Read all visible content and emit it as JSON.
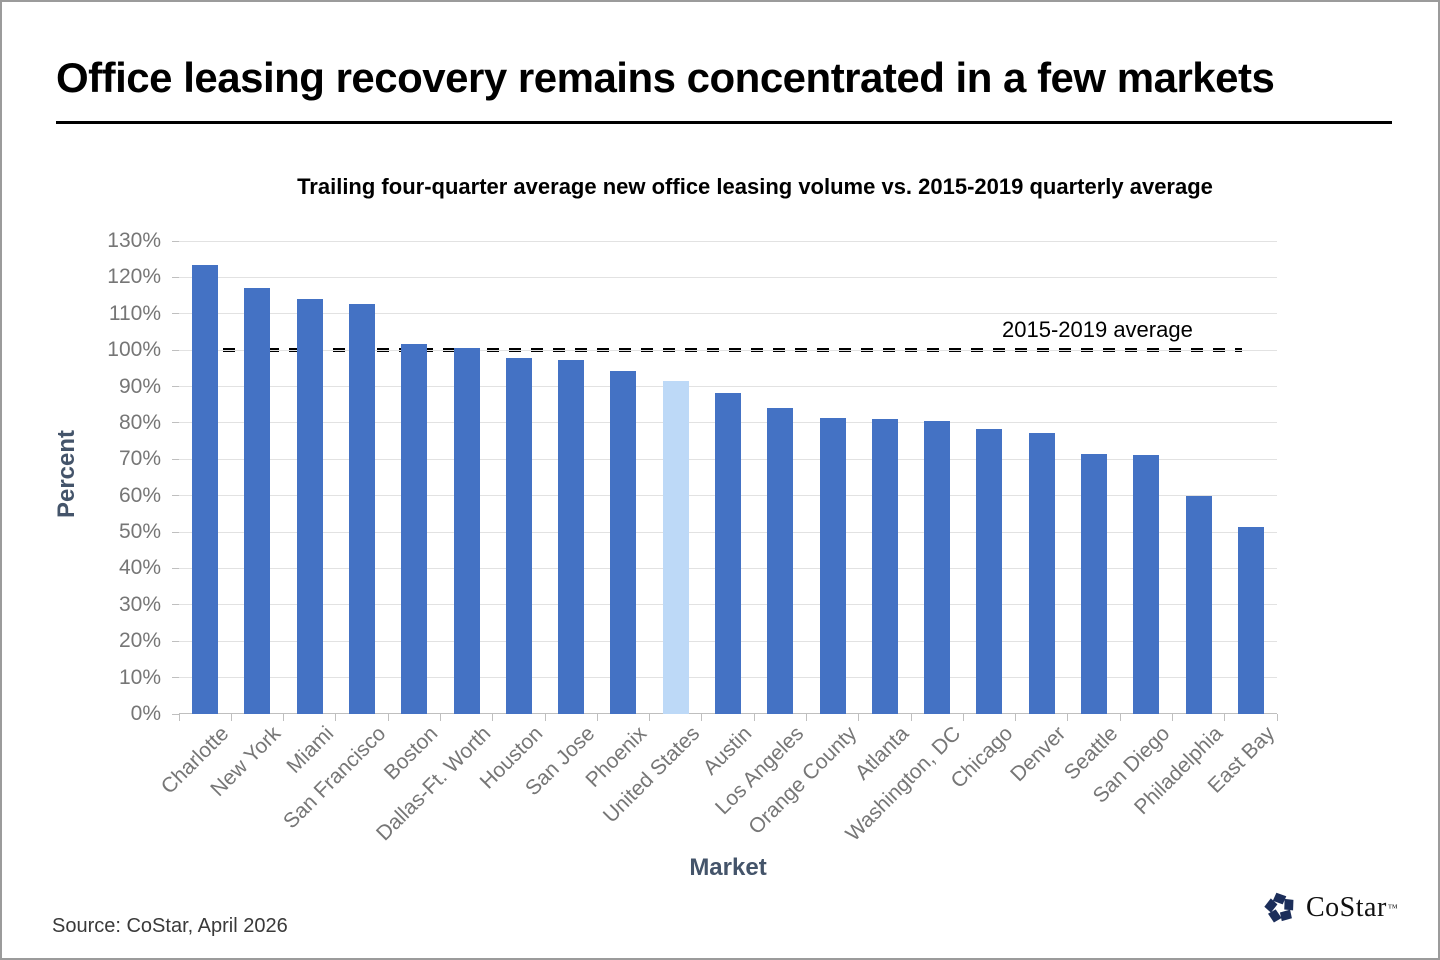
{
  "page": {
    "title": "Office leasing recovery remains concentrated in a few markets",
    "source": "Source: CoStar, April 2026",
    "logo_text": "CoStar",
    "logo_tm": "TM"
  },
  "chart_data": {
    "type": "bar",
    "title": "Trailing four-quarter average new office leasing volume vs. 2015-2019 quarterly average",
    "xlabel": "Market",
    "ylabel": "Percent",
    "ylim": [
      0,
      130
    ],
    "ytick_step": 10,
    "ytick_suffix": "%",
    "grid": true,
    "legend": "none",
    "categories": [
      "Charlotte",
      "New York",
      "Miami",
      "San Francisco",
      "Boston",
      "Dallas-Ft. Worth",
      "Houston",
      "San Jose",
      "Phoenix",
      "United States",
      "Austin",
      "Los Angeles",
      "Orange County",
      "Atlanta",
      "Washington, DC",
      "Chicago",
      "Denver",
      "Seattle",
      "San Diego",
      "Philadelphia",
      "East Bay"
    ],
    "values": [
      123.3,
      117.2,
      114.0,
      112.7,
      101.8,
      100.6,
      97.9,
      97.2,
      94.2,
      91.6,
      88.2,
      84.2,
      81.4,
      81.0,
      80.5,
      78.2,
      77.2,
      71.5,
      71.2,
      59.8,
      51.3
    ],
    "highlight_category": "United States",
    "colors": {
      "bar": "#4472C4",
      "highlight_bar": "#BDD9F7",
      "gridline": "#E2E2E2",
      "axis": "#BFBFBF",
      "tick_label": "#767676",
      "axis_title": "#44546A",
      "reference_line": "#000000",
      "logo_navy": "#1C2E5A"
    },
    "reference_line": {
      "value": 100,
      "label": "2015-2019 average",
      "style": "dashed"
    }
  }
}
